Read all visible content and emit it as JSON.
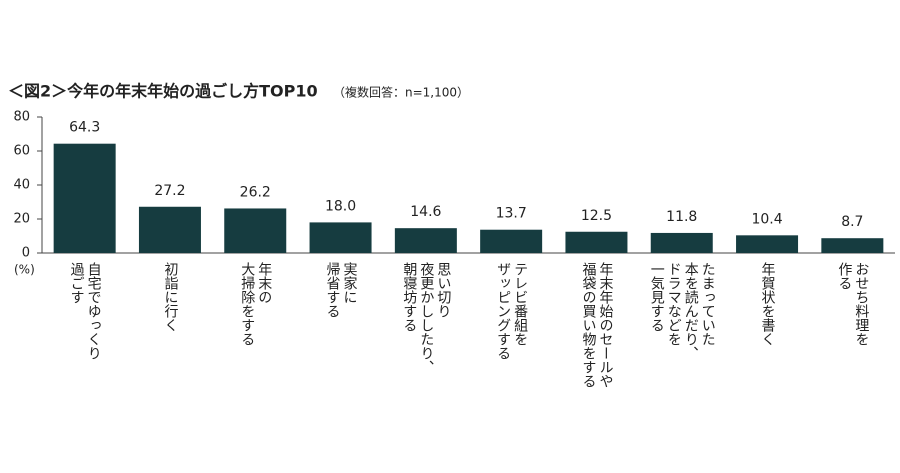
{
  "chart_data": {
    "type": "bar",
    "title": "＜図2＞今年の年末年始の過ごし方TOP10",
    "subtitle": "（複数回答：n=1,100）",
    "y_unit": "(%)",
    "categories": [
      "自宅でゆっくり\n過ごす",
      "初詣に行く",
      "年末の\n大掃除をする",
      "実家に\n帰省する",
      "思い切り\n夜更かししたり、\n朝寝坊する",
      "テレビ番組を\nザッピングする",
      "年末年始のセールや\n福袋の買い物をする",
      "たまっていた\n本を読んだり、\nドラマなどを\n一気見する",
      "年賀状を書く",
      "おせち料理を\n作る"
    ],
    "values": [
      64.3,
      27.2,
      26.2,
      18.0,
      14.6,
      13.7,
      12.5,
      11.8,
      10.4,
      8.7
    ],
    "value_labels": [
      "64.3",
      "27.2",
      "26.2",
      "18.0",
      "14.6",
      "13.7",
      "12.5",
      "11.8",
      "10.4",
      "8.7"
    ],
    "color": "#163c40",
    "ylim": [
      0,
      80
    ],
    "yticks": [
      0,
      20,
      40,
      60,
      80
    ]
  }
}
